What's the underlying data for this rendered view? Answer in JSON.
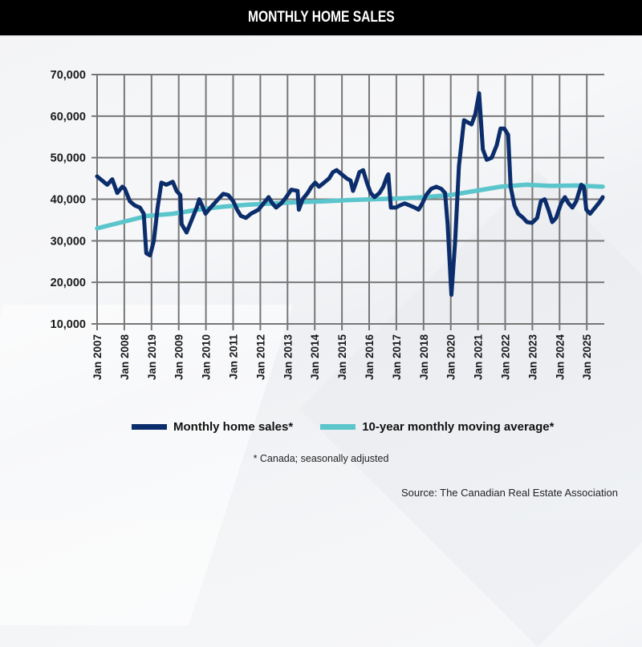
{
  "header": {
    "title": "MONTHLY HOME SALES"
  },
  "colors": {
    "sales": "#0b2d6b",
    "average": "#5bc5cc",
    "grid": "#777777"
  },
  "chart_data": {
    "type": "line",
    "title": "MONTHLY HOME SALES",
    "xlabel": "",
    "ylabel": "",
    "ylim": [
      10000,
      70000
    ],
    "yticks": [
      70000,
      60000,
      50000,
      40000,
      30000,
      20000,
      10000
    ],
    "ytick_labels": [
      "70,000",
      "60,000",
      "50,000",
      "40,000",
      "30,000",
      "20,000",
      "10,000"
    ],
    "xlim_years": [
      0,
      18.65
    ],
    "xtick_labels": [
      "Jan 2007",
      "Jan 2008",
      "Jan 2019",
      "Jan 2009",
      "Jan 2010",
      "Jan 2011",
      "Jan 2012",
      "Jan 2013",
      "Jan 2014",
      "Jan 2015",
      "Jan 2016",
      "Jan 2017",
      "Jan 2018",
      "Jan 2020",
      "Jan 2021",
      "Jan 2022",
      "Jan 2023",
      "Jan 2024",
      "Jan 2025"
    ],
    "grid": true,
    "legend_position": "bottom",
    "series": [
      {
        "name": "Monthly home sales*",
        "note": "x in years since first tick (Jan 2007), y in sales",
        "points": [
          [
            0.0,
            45500
          ],
          [
            0.2,
            44500
          ],
          [
            0.4,
            43500
          ],
          [
            0.6,
            44800
          ],
          [
            0.8,
            41500
          ],
          [
            1.0,
            43000
          ],
          [
            1.1,
            42500
          ],
          [
            1.3,
            39500
          ],
          [
            1.5,
            38500
          ],
          [
            1.7,
            38000
          ],
          [
            1.85,
            36500
          ],
          [
            1.95,
            27000
          ],
          [
            2.1,
            26500
          ],
          [
            2.25,
            30000
          ],
          [
            2.4,
            38000
          ],
          [
            2.55,
            44000
          ],
          [
            2.75,
            43500
          ],
          [
            3.0,
            44200
          ],
          [
            3.15,
            42000
          ],
          [
            3.3,
            41000
          ],
          [
            3.35,
            34000
          ],
          [
            3.55,
            32000
          ],
          [
            3.75,
            35000
          ],
          [
            3.95,
            38000
          ],
          [
            4.05,
            40000
          ],
          [
            4.2,
            38000
          ],
          [
            4.3,
            36500
          ],
          [
            4.5,
            38000
          ],
          [
            4.8,
            40000
          ],
          [
            5.0,
            41300
          ],
          [
            5.2,
            41000
          ],
          [
            5.4,
            39500
          ],
          [
            5.55,
            37500
          ],
          [
            5.7,
            36000
          ],
          [
            5.9,
            35500
          ],
          [
            6.1,
            36500
          ],
          [
            6.4,
            37500
          ],
          [
            6.6,
            39000
          ],
          [
            6.8,
            40500
          ],
          [
            6.95,
            39000
          ],
          [
            7.1,
            38000
          ],
          [
            7.3,
            39000
          ],
          [
            7.5,
            40500
          ],
          [
            7.7,
            42300
          ],
          [
            7.95,
            42000
          ],
          [
            8.0,
            37500
          ],
          [
            8.15,
            40000
          ],
          [
            8.35,
            41500
          ],
          [
            8.5,
            43000
          ],
          [
            8.65,
            44000
          ],
          [
            8.8,
            43000
          ],
          [
            9.0,
            44000
          ],
          [
            9.2,
            45000
          ],
          [
            9.35,
            46500
          ],
          [
            9.5,
            47000
          ],
          [
            9.7,
            46000
          ],
          [
            9.9,
            45000
          ],
          [
            10.05,
            44500
          ],
          [
            10.15,
            42000
          ],
          [
            10.3,
            44500
          ],
          [
            10.4,
            46500
          ],
          [
            10.55,
            47000
          ],
          [
            10.7,
            44000
          ],
          [
            10.85,
            41500
          ],
          [
            11.0,
            40500
          ],
          [
            11.2,
            41500
          ],
          [
            11.35,
            43000
          ],
          [
            11.5,
            45500
          ],
          [
            11.55,
            46000
          ],
          [
            11.65,
            38000
          ],
          [
            11.85,
            38000
          ],
          [
            12.0,
            38500
          ],
          [
            12.2,
            39000
          ],
          [
            12.4,
            38500
          ],
          [
            12.6,
            38000
          ],
          [
            12.75,
            37500
          ],
          [
            12.9,
            39000
          ],
          [
            13.05,
            41000
          ],
          [
            13.25,
            42500
          ],
          [
            13.45,
            43000
          ],
          [
            13.65,
            42500
          ],
          [
            13.8,
            41500
          ],
          [
            13.9,
            34000
          ],
          [
            14.05,
            17000
          ],
          [
            14.2,
            30000
          ],
          [
            14.35,
            48000
          ],
          [
            14.55,
            59000
          ],
          [
            14.7,
            58500
          ],
          [
            14.85,
            58000
          ],
          [
            15.0,
            60500
          ],
          [
            15.15,
            65500
          ],
          [
            15.3,
            52000
          ],
          [
            15.45,
            49500
          ],
          [
            15.65,
            50000
          ],
          [
            15.85,
            53000
          ],
          [
            16.0,
            57000
          ],
          [
            16.15,
            57000
          ],
          [
            16.3,
            55500
          ],
          [
            16.4,
            43000
          ],
          [
            16.55,
            38500
          ],
          [
            16.7,
            36500
          ],
          [
            16.9,
            35500
          ],
          [
            17.05,
            34500
          ],
          [
            17.25,
            34300
          ],
          [
            17.45,
            35500
          ],
          [
            17.6,
            39500
          ],
          [
            17.75,
            40000
          ],
          [
            17.9,
            37500
          ],
          [
            18.05,
            34500
          ],
          [
            18.2,
            35500
          ],
          [
            18.4,
            39000
          ],
          [
            18.55,
            40500
          ],
          [
            18.7,
            39000
          ],
          [
            18.85,
            38000
          ],
          [
            19.0,
            39500
          ],
          [
            19.2,
            43500
          ],
          [
            19.3,
            43000
          ],
          [
            19.4,
            37500
          ],
          [
            19.55,
            36500
          ],
          [
            19.75,
            38000
          ],
          [
            19.95,
            39500
          ],
          [
            20.05,
            40500
          ]
        ]
      },
      {
        "name": "10-year monthly moving average*",
        "points": [
          [
            0.0,
            33000
          ],
          [
            1.0,
            34500
          ],
          [
            2.0,
            36000
          ],
          [
            3.0,
            36500
          ],
          [
            4.0,
            37500
          ],
          [
            5.0,
            38200
          ],
          [
            6.0,
            38700
          ],
          [
            7.0,
            39000
          ],
          [
            8.0,
            39300
          ],
          [
            9.0,
            39500
          ],
          [
            10.0,
            39800
          ],
          [
            11.0,
            40000
          ],
          [
            12.0,
            40200
          ],
          [
            13.0,
            40500
          ],
          [
            14.0,
            41000
          ],
          [
            15.0,
            42000
          ],
          [
            16.0,
            43000
          ],
          [
            17.0,
            43500
          ],
          [
            18.0,
            43200
          ],
          [
            19.0,
            43300
          ],
          [
            20.05,
            43000
          ]
        ]
      }
    ],
    "legend": [
      "Monthly home sales*",
      "10-year monthly moving average*"
    ]
  },
  "footnote": "* Canada; seasonally adjusted",
  "source": "Source: The Canadian Real Estate Association"
}
